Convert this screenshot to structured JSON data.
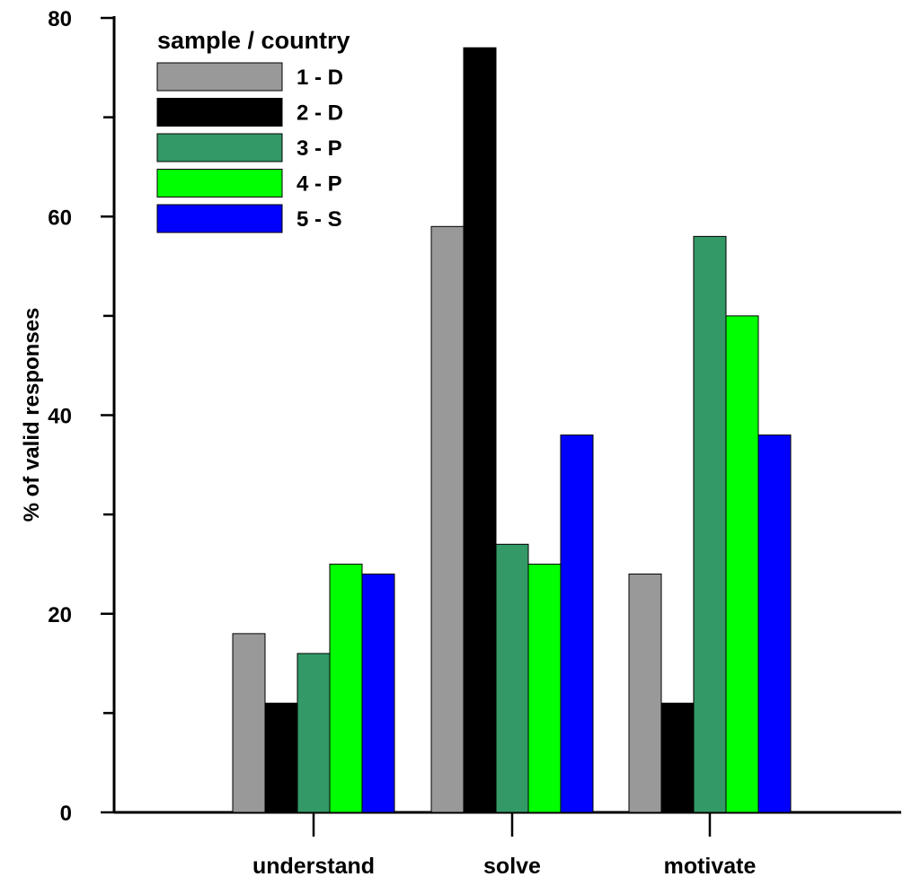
{
  "chart_data": {
    "type": "bar",
    "title": "",
    "xlabel": "",
    "ylabel": "% of valid responses",
    "ylim": [
      0,
      80
    ],
    "y_major_ticks": [
      0,
      20,
      40,
      60,
      80
    ],
    "y_minor_ticks": [
      10,
      30,
      50,
      70
    ],
    "categories": [
      "understand",
      "solve",
      "motivate"
    ],
    "series": [
      {
        "name": "1 - D",
        "color": "#999999",
        "values": [
          18,
          59,
          24
        ]
      },
      {
        "name": "2 - D",
        "color": "#000000",
        "values": [
          11,
          77,
          11
        ]
      },
      {
        "name": "3 - P",
        "color": "#339966",
        "values": [
          16,
          27,
          58
        ]
      },
      {
        "name": "4 - P",
        "color": "#00ff00",
        "values": [
          25,
          25,
          50
        ]
      },
      {
        "name": "5 - S",
        "color": "#0000ff",
        "values": [
          24,
          38,
          38
        ]
      }
    ],
    "legend": {
      "title": "sample / country",
      "position": "top-left"
    },
    "grid": false
  }
}
